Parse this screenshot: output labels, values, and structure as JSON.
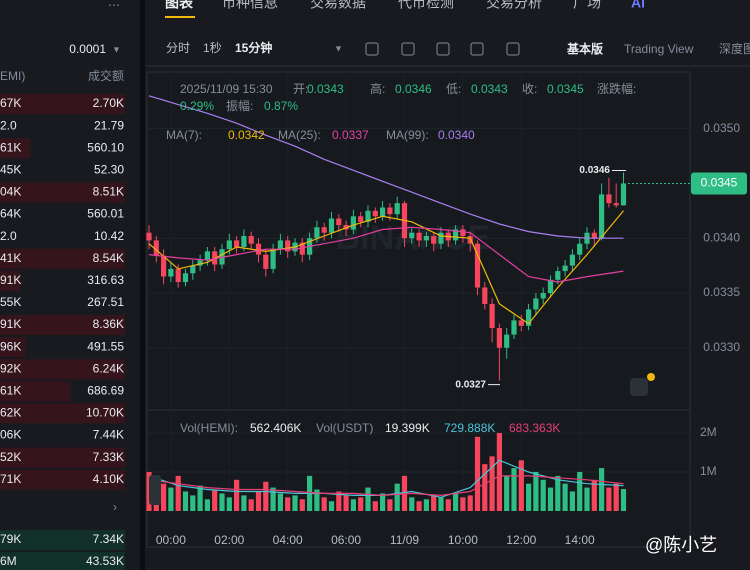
{
  "nav": {
    "tabs": [
      "图表",
      "币种信息",
      "交易数据",
      "代币检测",
      "交易分析",
      "广场"
    ],
    "ai": "Ai"
  },
  "toolbar": {
    "intervals": [
      "分时",
      "1秒",
      "15分钟"
    ],
    "views": [
      "基本版",
      "Trading View",
      "深度图"
    ]
  },
  "order_book": {
    "header": [
      "EMI)",
      "成交额"
    ],
    "tick": "0.0001",
    "rows": [
      [
        "67K",
        "2.70K"
      ],
      [
        "2.0",
        "21.79"
      ],
      [
        "61K",
        "560.10"
      ],
      [
        "45K",
        "52.30"
      ],
      [
        "04K",
        "8.51K"
      ],
      [
        "64K",
        "560.01"
      ],
      [
        "2.0",
        "10.42"
      ],
      [
        "41K",
        "8.54K"
      ],
      [
        "91K",
        "316.63"
      ],
      [
        "55K",
        "267.51"
      ],
      [
        "91K",
        "8.36K"
      ],
      [
        "96K",
        "491.55"
      ],
      [
        "92K",
        "6.24K"
      ],
      [
        "61K",
        "686.69"
      ],
      [
        "62K",
        "10.70K"
      ],
      [
        "06K",
        "7.44K"
      ],
      [
        "52K",
        "7.33K"
      ],
      [
        "71K",
        "4.10K"
      ]
    ],
    "more": "›",
    "bottom_rows": [
      [
        "79K",
        "7.34K"
      ],
      [
        "6M",
        "43.53K"
      ]
    ]
  },
  "chart_data": {
    "type": "candlestick",
    "info": {
      "time": "2025/11/09 15:30",
      "open_label": "开:",
      "open": "0.0343",
      "high_label": "高:",
      "high": "0.0346",
      "low_label": "低:",
      "low": "0.0343",
      "close_label": "收:",
      "close": "0.0345",
      "change_label": "涨跌幅:",
      "change": "0.29%",
      "amp_label": "振幅:",
      "amp": "0.87%"
    },
    "ma": [
      {
        "name": "MA(7):",
        "label": "0.0342",
        "color": "#f0b90b",
        "x": [
          0,
          4,
          8,
          12,
          16,
          20,
          24,
          28,
          32,
          36,
          40,
          44,
          48,
          52,
          56,
          60,
          65
        ],
        "values": [
          0.03395,
          0.03372,
          0.03378,
          0.03392,
          0.03388,
          0.03392,
          0.03402,
          0.03412,
          0.0342,
          0.03415,
          0.03402,
          0.034,
          0.0334,
          0.03322,
          0.03355,
          0.03385,
          0.03425
        ]
      },
      {
        "name": "MA(25):",
        "label": "0.0337",
        "color": "#e63fa0",
        "x": [
          0,
          4,
          8,
          12,
          16,
          20,
          24,
          28,
          32,
          36,
          40,
          44,
          48,
          52,
          56,
          60,
          65
        ],
        "values": [
          0.03385,
          0.03382,
          0.0338,
          0.03385,
          0.0339,
          0.0339,
          0.03395,
          0.034,
          0.03408,
          0.0341,
          0.03408,
          0.03405,
          0.03385,
          0.03365,
          0.0336,
          0.03365,
          0.0337
        ]
      },
      {
        "name": "MA(99):",
        "label": "0.0340",
        "color": "#a97ff0",
        "x": [
          0,
          4,
          8,
          12,
          16,
          20,
          24,
          28,
          32,
          36,
          40,
          44,
          48,
          52,
          56,
          60,
          65
        ],
        "values": [
          0.0353,
          0.03522,
          0.03514,
          0.03505,
          0.03494,
          0.03484,
          0.03472,
          0.03462,
          0.03452,
          0.03442,
          0.03432,
          0.03422,
          0.03413,
          0.03406,
          0.03402,
          0.034,
          0.034
        ]
      }
    ],
    "candles": [
      [
        0.03405,
        0.03412,
        0.0339,
        0.03398
      ],
      [
        0.03398,
        0.03402,
        0.03378,
        0.03384
      ],
      [
        0.03384,
        0.0339,
        0.03358,
        0.03365
      ],
      [
        0.03365,
        0.03378,
        0.0336,
        0.03372
      ],
      [
        0.03372,
        0.03376,
        0.03355,
        0.0336
      ],
      [
        0.0336,
        0.03372,
        0.03356,
        0.03368
      ],
      [
        0.03368,
        0.0338,
        0.03362,
        0.03375
      ],
      [
        0.03375,
        0.03385,
        0.0337,
        0.0338
      ],
      [
        0.0338,
        0.03392,
        0.03375,
        0.03388
      ],
      [
        0.03388,
        0.03392,
        0.0337,
        0.03376
      ],
      [
        0.03376,
        0.03395,
        0.03372,
        0.0339
      ],
      [
        0.0339,
        0.03404,
        0.03385,
        0.03398
      ],
      [
        0.03398,
        0.03402,
        0.03386,
        0.03392
      ],
      [
        0.03392,
        0.03408,
        0.03388,
        0.03402
      ],
      [
        0.03402,
        0.03406,
        0.0339,
        0.03395
      ],
      [
        0.03395,
        0.034,
        0.03378,
        0.03385
      ],
      [
        0.03385,
        0.0339,
        0.03365,
        0.03372
      ],
      [
        0.03372,
        0.03395,
        0.03368,
        0.0339
      ],
      [
        0.0339,
        0.03404,
        0.03385,
        0.03398
      ],
      [
        0.03398,
        0.03402,
        0.03382,
        0.03388
      ],
      [
        0.03388,
        0.034,
        0.03384,
        0.03396
      ],
      [
        0.03396,
        0.034,
        0.03378,
        0.03385
      ],
      [
        0.03385,
        0.03405,
        0.0338,
        0.034
      ],
      [
        0.034,
        0.03416,
        0.03396,
        0.0341
      ],
      [
        0.0341,
        0.03414,
        0.03398,
        0.03405
      ],
      [
        0.03405,
        0.03424,
        0.034,
        0.03418
      ],
      [
        0.03418,
        0.03422,
        0.03406,
        0.03412
      ],
      [
        0.03412,
        0.03416,
        0.03402,
        0.03408
      ],
      [
        0.03408,
        0.03426,
        0.03404,
        0.0342
      ],
      [
        0.0342,
        0.03424,
        0.0341,
        0.03415
      ],
      [
        0.03415,
        0.0343,
        0.0341,
        0.03425
      ],
      [
        0.03425,
        0.03428,
        0.03414,
        0.0342
      ],
      [
        0.0342,
        0.03434,
        0.03416,
        0.03428
      ],
      [
        0.03428,
        0.03432,
        0.03416,
        0.03422
      ],
      [
        0.03422,
        0.03438,
        0.03418,
        0.03432
      ],
      [
        0.03432,
        0.03434,
        0.03392,
        0.034
      ],
      [
        0.034,
        0.0341,
        0.03395,
        0.03405
      ],
      [
        0.03405,
        0.03408,
        0.03392,
        0.03398
      ],
      [
        0.03398,
        0.03406,
        0.03392,
        0.03402
      ],
      [
        0.03402,
        0.03405,
        0.03388,
        0.03395
      ],
      [
        0.03395,
        0.0341,
        0.0339,
        0.03405
      ],
      [
        0.03405,
        0.03408,
        0.03392,
        0.03398
      ],
      [
        0.03398,
        0.03412,
        0.03394,
        0.03408
      ],
      [
        0.03408,
        0.03412,
        0.03396,
        0.03402
      ],
      [
        0.03402,
        0.03406,
        0.03388,
        0.03395
      ],
      [
        0.03395,
        0.03398,
        0.03348,
        0.03355
      ],
      [
        0.03355,
        0.0336,
        0.03335,
        0.0334
      ],
      [
        0.0334,
        0.03345,
        0.03305,
        0.03318
      ],
      [
        0.03318,
        0.03322,
        0.0327,
        0.033
      ],
      [
        0.033,
        0.03318,
        0.0329,
        0.03312
      ],
      [
        0.03312,
        0.0333,
        0.03308,
        0.03325
      ],
      [
        0.03325,
        0.0333,
        0.03315,
        0.0332
      ],
      [
        0.0332,
        0.0334,
        0.03316,
        0.03335
      ],
      [
        0.03335,
        0.0335,
        0.0333,
        0.03345
      ],
      [
        0.03345,
        0.03355,
        0.0334,
        0.0335
      ],
      [
        0.0335,
        0.03366,
        0.03346,
        0.03362
      ],
      [
        0.03362,
        0.03374,
        0.03358,
        0.0337
      ],
      [
        0.0337,
        0.0338,
        0.03365,
        0.03375
      ],
      [
        0.03375,
        0.0339,
        0.0337,
        0.03385
      ],
      [
        0.03385,
        0.034,
        0.0338,
        0.03395
      ],
      [
        0.03395,
        0.0341,
        0.0339,
        0.03405
      ],
      [
        0.03405,
        0.03408,
        0.03392,
        0.034
      ],
      [
        0.034,
        0.0345,
        0.03398,
        0.0344
      ],
      [
        0.0344,
        0.03455,
        0.03428,
        0.03432
      ],
      [
        0.03432,
        0.0345,
        0.03428,
        0.0343
      ],
      [
        0.0343,
        0.0346,
        0.0343,
        0.0345
      ]
    ],
    "volumes": [
      1000000,
      850000,
      700000,
      600000,
      900000,
      500000,
      400000,
      650000,
      300000,
      550000,
      450000,
      350000,
      800000,
      400000,
      300000,
      500000,
      750000,
      600000,
      450000,
      350000,
      400000,
      300000,
      900000,
      550000,
      350000,
      250000,
      500000,
      400000,
      300000,
      350000,
      600000,
      250000,
      450000,
      300000,
      700000,
      900000,
      350000,
      250000,
      300000,
      400000,
      350000,
      300000,
      450000,
      350000,
      400000,
      1900000,
      1200000,
      1400000,
      2000000,
      900000,
      1100000,
      1300000,
      700000,
      1000000,
      800000,
      600000,
      900000,
      700000,
      500000,
      1000000,
      600000,
      800000,
      1100000,
      600000,
      700000,
      562406
    ],
    "vol_ma": [
      {
        "label": "729.888K",
        "color": "#4dc3d8",
        "x": [
          0,
          4,
          8,
          12,
          16,
          20,
          24,
          28,
          32,
          36,
          40,
          44,
          48,
          52,
          56,
          60,
          65
        ],
        "values": [
          900000,
          650000,
          550000,
          500000,
          500000,
          450000,
          450000,
          400000,
          400000,
          500000,
          350000,
          600000,
          1300000,
          1000000,
          800000,
          700000,
          650000
        ]
      },
      {
        "label": "683.363K",
        "color": "#e63f74",
        "x": [
          0,
          4,
          8,
          12,
          16,
          20,
          24,
          28,
          32,
          36,
          40,
          44,
          48,
          52,
          56,
          60,
          65
        ],
        "values": [
          800000,
          700000,
          600000,
          550000,
          550000,
          500000,
          450000,
          450000,
          400000,
          450000,
          400000,
          500000,
          900000,
          900000,
          850000,
          800000,
          700000
        ]
      }
    ],
    "vol_info": {
      "name1": "Vol(HEMI):",
      "value1": "562.406K",
      "name2": "Vol(USDT)",
      "value2": "19.399K"
    },
    "xlim": [
      0,
      74
    ],
    "xticks": [
      {
        "value": 3,
        "label": "00:00"
      },
      {
        "value": 11,
        "label": "02:00"
      },
      {
        "value": 19,
        "label": "04:00"
      },
      {
        "value": 27,
        "label": "06:00"
      },
      {
        "value": 35,
        "label": "11/09"
      },
      {
        "value": 43,
        "label": "10:00"
      },
      {
        "value": 51,
        "label": "12:00"
      },
      {
        "value": 59,
        "label": "14:00"
      }
    ],
    "ylim": [
      0.03245,
      0.03549
    ],
    "yticks": [
      {
        "value": 0.033,
        "label": "0.0330"
      },
      0.0335,
      {
        "value": 0.034,
        "label": "0.0340"
      },
      {
        "value": 0.035,
        "label": "0.0350"
      }
    ],
    "last_price": 0.0345,
    "max_label": 0.0346,
    "min_label": 0.0327,
    "vol_ylim": [
      0,
      2460000
    ],
    "vol_yticks": [
      {
        "value": 1000000,
        "label": "1M"
      },
      {
        "value": 2000000,
        "label": "2M"
      }
    ],
    "up_color": "#2ebd85",
    "down_color": "#f6465d",
    "watermark": "@陈小艺"
  }
}
